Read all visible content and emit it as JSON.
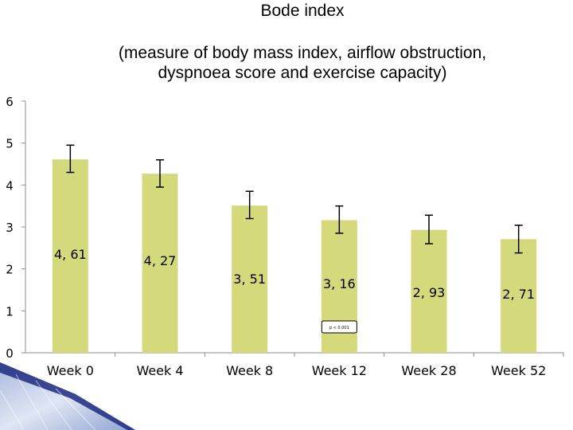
{
  "title": "Bode index",
  "subtitle_lines": [
    "(measure of body mass index, airflow obstruction,",
    "dyspnoea score and exercise capacity)"
  ],
  "chart_data": {
    "type": "bar",
    "title": "Bode index",
    "subtitle": "(measure of body mass index, airflow obstruction, dyspnoea score and exercise capacity)",
    "xlabel": "",
    "ylabel": "",
    "categories": [
      "Week 0",
      "Week 4",
      "Week 8",
      "Week 12",
      "Week 28",
      "Week 52"
    ],
    "values": [
      4.61,
      4.27,
      3.51,
      3.16,
      2.93,
      2.71
    ],
    "data_labels": [
      "4, 61",
      "4, 27",
      "3, 51",
      "3, 16",
      "2, 93",
      "2, 71"
    ],
    "error_bars": [
      {
        "low": 4.3,
        "high": 4.95
      },
      {
        "low": 3.95,
        "high": 4.6
      },
      {
        "low": 3.2,
        "high": 3.85
      },
      {
        "low": 2.85,
        "high": 3.5
      },
      {
        "low": 2.6,
        "high": 3.28
      },
      {
        "low": 2.38,
        "high": 3.04
      }
    ],
    "ylim": [
      0,
      6
    ],
    "y_ticks": [
      "0",
      "1",
      "2",
      "3",
      "4",
      "5",
      "6"
    ],
    "grid": false,
    "legend": "none",
    "bar_color": "#d4d97c",
    "annotation": "p < 0.001"
  },
  "colors": {
    "corner_dark": "#1e2c80",
    "corner_light": "#c5d3ea"
  }
}
